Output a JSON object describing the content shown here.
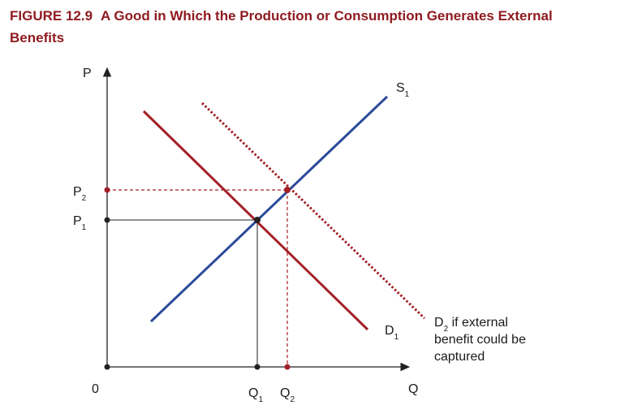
{
  "figure": {
    "number": "FIGURE 12.9",
    "title": "A Good in Which the Production or Consumption Generates External Benefits"
  },
  "axes": {
    "y_label": "P",
    "x_label": "Q",
    "origin": "0"
  },
  "curves": {
    "supply": {
      "name": "S",
      "sub": "1",
      "color": "#2b4a9a"
    },
    "demand1": {
      "name": "D",
      "sub": "1",
      "color": "#a32027"
    },
    "demand2": {
      "name": "D",
      "sub": "2",
      "line1": " if external",
      "line2": "benefit could be",
      "line3": "captured",
      "color": "#a32027"
    }
  },
  "points": {
    "p1": {
      "name": "P",
      "sub": "1"
    },
    "p2": {
      "name": "P",
      "sub": "2"
    },
    "q1": {
      "name": "Q",
      "sub": "1"
    },
    "q2": {
      "name": "Q",
      "sub": "2"
    }
  },
  "colors": {
    "axis": "#222222",
    "accent": "#a32027",
    "supply": "#2b4a9a"
  }
}
